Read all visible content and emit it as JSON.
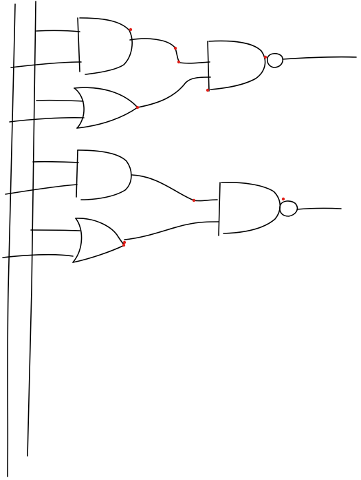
{
  "diagram": {
    "type": "logic-circuit-sketch",
    "gates": [
      {
        "id": "and-1",
        "kind": "AND"
      },
      {
        "id": "or-1",
        "kind": "OR"
      },
      {
        "id": "nand-1",
        "kind": "NAND",
        "inputs": [
          "and-1",
          "or-1"
        ]
      },
      {
        "id": "and-2",
        "kind": "AND"
      },
      {
        "id": "or-2",
        "kind": "OR"
      },
      {
        "id": "nand-2",
        "kind": "NAND",
        "inputs": [
          "and-2",
          "or-2"
        ]
      }
    ],
    "input_buses": 2
  },
  "colors": {
    "ink": "#000000",
    "connection_dot": "#e0201a",
    "background": "#ffffff"
  }
}
